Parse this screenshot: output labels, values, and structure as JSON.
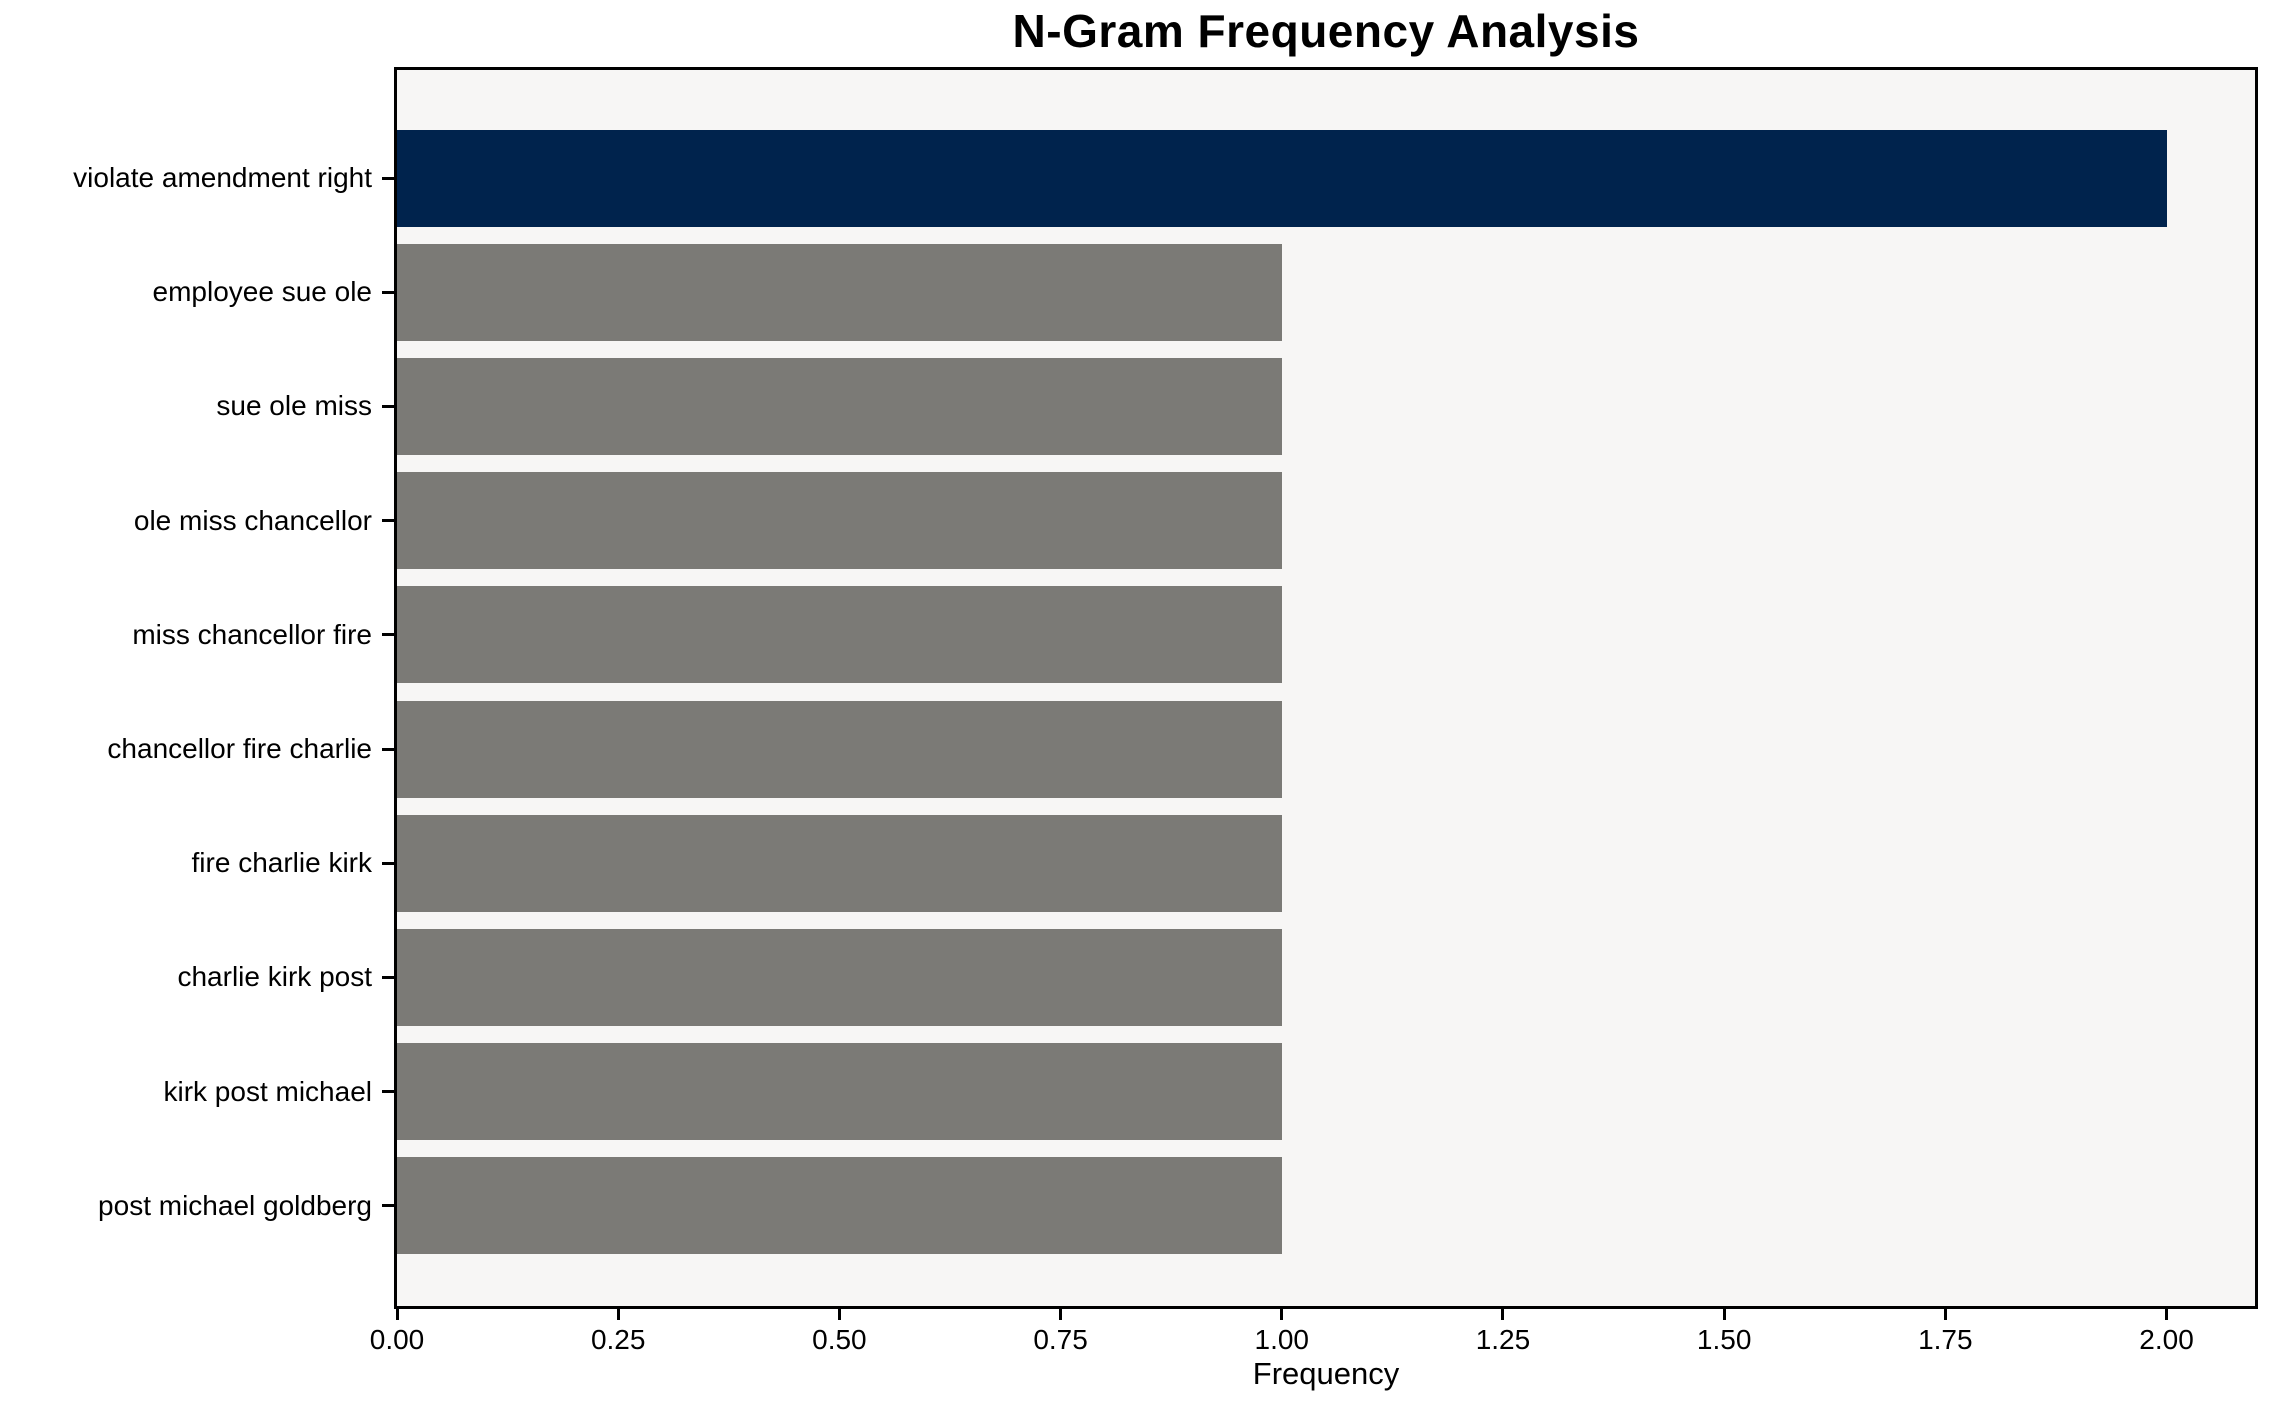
{
  "title": "N-Gram Frequency Analysis",
  "chart_data": {
    "type": "bar",
    "orientation": "horizontal",
    "title": "N-Gram Frequency Analysis",
    "xlabel": "Frequency",
    "ylabel": "",
    "categories": [
      "violate amendment right",
      "employee sue ole",
      "sue ole miss",
      "ole miss chancellor",
      "miss chancellor fire",
      "chancellor fire charlie",
      "fire charlie kirk",
      "charlie kirk post",
      "kirk post michael",
      "post michael goldberg"
    ],
    "values": [
      2,
      1,
      1,
      1,
      1,
      1,
      1,
      1,
      1,
      1
    ],
    "bar_colors": [
      "#00234d",
      "#7b7a76",
      "#7b7a76",
      "#7b7a76",
      "#7b7a76",
      "#7b7a76",
      "#7b7a76",
      "#7b7a76",
      "#7b7a76",
      "#7b7a76"
    ],
    "highlight_color": "#00234d",
    "default_color": "#7b7a76",
    "x_ticks": [
      "0.00",
      "0.25",
      "0.50",
      "0.75",
      "1.00",
      "1.25",
      "1.50",
      "1.75",
      "2.00"
    ],
    "x_tick_values": [
      0,
      0.25,
      0.5,
      0.75,
      1.0,
      1.25,
      1.5,
      1.75,
      2.0
    ],
    "xlim": [
      0,
      2.1
    ],
    "grid": false,
    "legend": false,
    "plot_background": "#f7f6f5",
    "figure_background": "#ffffff",
    "spine_color": "#000000"
  }
}
